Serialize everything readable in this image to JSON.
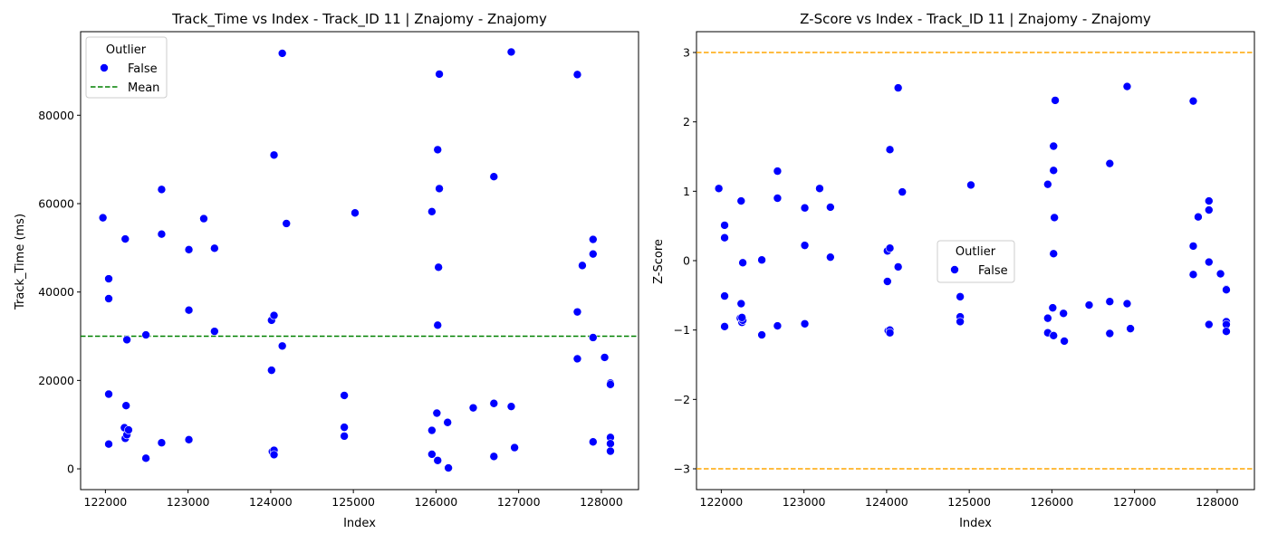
{
  "chart_data": [
    {
      "type": "scatter",
      "title": "Track_Time vs Index - Track_ID 11 | Znajomy - Znajomy",
      "xlabel": "Index",
      "ylabel": "Track_Time (ms)",
      "xlim": [
        121700,
        128450
      ],
      "ylim": [
        -4700,
        98900
      ],
      "xticks": [
        122000,
        123000,
        124000,
        125000,
        126000,
        127000,
        128000
      ],
      "yticks": [
        0,
        20000,
        40000,
        60000,
        80000
      ],
      "grid": false,
      "legend": {
        "placement": "top-left",
        "title": "Outlier",
        "entries": [
          "False",
          "Mean"
        ]
      },
      "series": [
        {
          "name": "False",
          "color": "#0000ff",
          "points": [
            [
              121970,
              56800
            ],
            [
              122040,
              43000
            ],
            [
              122040,
              38500
            ],
            [
              122040,
              16900
            ],
            [
              122040,
              5600
            ],
            [
              122240,
              52000
            ],
            [
              122260,
              29200
            ],
            [
              122250,
              14300
            ],
            [
              122230,
              9300
            ],
            [
              122240,
              6900
            ],
            [
              122260,
              7700
            ],
            [
              122280,
              8800
            ],
            [
              122490,
              30300
            ],
            [
              122490,
              2400
            ],
            [
              122680,
              63200
            ],
            [
              122680,
              53100
            ],
            [
              122680,
              5900
            ],
            [
              123010,
              49600
            ],
            [
              123010,
              35900
            ],
            [
              123010,
              6600
            ],
            [
              123190,
              56600
            ],
            [
              123320,
              49900
            ],
            [
              123320,
              31100
            ],
            [
              124010,
              33600
            ],
            [
              124040,
              34700
            ],
            [
              124010,
              22300
            ],
            [
              124020,
              3900
            ],
            [
              124040,
              4200
            ],
            [
              124040,
              3200
            ],
            [
              124040,
              71000
            ],
            [
              124140,
              94000
            ],
            [
              124140,
              27800
            ],
            [
              124190,
              55500
            ],
            [
              124890,
              16600
            ],
            [
              124890,
              9400
            ],
            [
              124890,
              7400
            ],
            [
              125020,
              57900
            ],
            [
              125950,
              58200
            ],
            [
              125950,
              8700
            ],
            [
              125950,
              3300
            ],
            [
              126020,
              72200
            ],
            [
              126040,
              89300
            ],
            [
              126040,
              63400
            ],
            [
              126030,
              45600
            ],
            [
              126020,
              32500
            ],
            [
              126010,
              12600
            ],
            [
              126020,
              1900
            ],
            [
              126140,
              10500
            ],
            [
              126150,
              200
            ],
            [
              126450,
              13800
            ],
            [
              126700,
              66100
            ],
            [
              126700,
              14800
            ],
            [
              126700,
              2800
            ],
            [
              126910,
              94300
            ],
            [
              126910,
              14100
            ],
            [
              126950,
              4800
            ],
            [
              127710,
              89200
            ],
            [
              127710,
              35500
            ],
            [
              127710,
              24900
            ],
            [
              127770,
              46000
            ],
            [
              127900,
              51900
            ],
            [
              127900,
              48600
            ],
            [
              127900,
              29700
            ],
            [
              127900,
              6100
            ],
            [
              128040,
              25200
            ],
            [
              128110,
              19400
            ],
            [
              128110,
              19100
            ],
            [
              128110,
              7100
            ],
            [
              128110,
              5700
            ],
            [
              128110,
              4000
            ]
          ]
        }
      ],
      "reference_lines": [
        {
          "name": "Mean",
          "axis": "y",
          "value": 30000,
          "color": "#008000",
          "style": "dashed"
        }
      ]
    },
    {
      "type": "scatter",
      "title": "Z-Score vs Index - Track_ID 11 | Znajomy - Znajomy",
      "xlabel": "Index",
      "ylabel": "Z-Score",
      "xlim": [
        121700,
        128450
      ],
      "ylim": [
        -3.3,
        3.3
      ],
      "xticks": [
        122000,
        123000,
        124000,
        125000,
        126000,
        127000,
        128000
      ],
      "yticks": [
        -3,
        -2,
        -1,
        0,
        1,
        2,
        3
      ],
      "grid": false,
      "legend": {
        "placement": "center",
        "title": "Outlier",
        "entries": [
          "False"
        ]
      },
      "series": [
        {
          "name": "False",
          "color": "#0000ff",
          "points": [
            [
              121970,
              1.04
            ],
            [
              122040,
              0.51
            ],
            [
              122040,
              0.33
            ],
            [
              122040,
              -0.51
            ],
            [
              122040,
              -0.95
            ],
            [
              122240,
              0.86
            ],
            [
              122260,
              -0.03
            ],
            [
              122240,
              -0.62
            ],
            [
              122230,
              -0.83
            ],
            [
              122250,
              -0.89
            ],
            [
              122260,
              -0.86
            ],
            [
              122250,
              -0.82
            ],
            [
              122490,
              0.01
            ],
            [
              122490,
              -1.07
            ],
            [
              122680,
              1.29
            ],
            [
              122680,
              0.9
            ],
            [
              122680,
              -0.94
            ],
            [
              123010,
              0.76
            ],
            [
              123010,
              0.22
            ],
            [
              123010,
              -0.91
            ],
            [
              123190,
              1.04
            ],
            [
              123320,
              0.77
            ],
            [
              123320,
              0.05
            ],
            [
              124010,
              0.14
            ],
            [
              124040,
              0.18
            ],
            [
              124010,
              -0.3
            ],
            [
              124020,
              -1.01
            ],
            [
              124040,
              -1.0
            ],
            [
              124040,
              -1.04
            ],
            [
              124040,
              1.6
            ],
            [
              124140,
              2.49
            ],
            [
              124140,
              -0.09
            ],
            [
              124190,
              0.99
            ],
            [
              124890,
              -0.52
            ],
            [
              124890,
              -0.81
            ],
            [
              124890,
              -0.88
            ],
            [
              125020,
              1.09
            ],
            [
              125950,
              1.1
            ],
            [
              125950,
              -0.83
            ],
            [
              125950,
              -1.04
            ],
            [
              126020,
              1.65
            ],
            [
              126040,
              2.31
            ],
            [
              126020,
              1.3
            ],
            [
              126030,
              0.62
            ],
            [
              126020,
              0.1
            ],
            [
              126010,
              -0.68
            ],
            [
              126020,
              -1.08
            ],
            [
              126140,
              -0.76
            ],
            [
              126150,
              -1.16
            ],
            [
              126450,
              -0.64
            ],
            [
              126700,
              1.4
            ],
            [
              126700,
              -0.59
            ],
            [
              126700,
              -1.05
            ],
            [
              126910,
              2.51
            ],
            [
              126910,
              -0.62
            ],
            [
              126950,
              -0.98
            ],
            [
              127710,
              2.3
            ],
            [
              127710,
              0.21
            ],
            [
              127710,
              -0.2
            ],
            [
              127770,
              0.63
            ],
            [
              127900,
              0.86
            ],
            [
              127900,
              0.73
            ],
            [
              127900,
              -0.02
            ],
            [
              127900,
              -0.92
            ],
            [
              128040,
              -0.19
            ],
            [
              128110,
              -0.41
            ],
            [
              128110,
              -0.42
            ],
            [
              128110,
              -0.88
            ],
            [
              128110,
              -0.92
            ],
            [
              128110,
              -1.02
            ]
          ]
        }
      ],
      "reference_lines": [
        {
          "axis": "y",
          "value": 3,
          "color": "#ffa500",
          "style": "dashed"
        },
        {
          "axis": "y",
          "value": -3,
          "color": "#ffa500",
          "style": "dashed"
        }
      ]
    }
  ]
}
